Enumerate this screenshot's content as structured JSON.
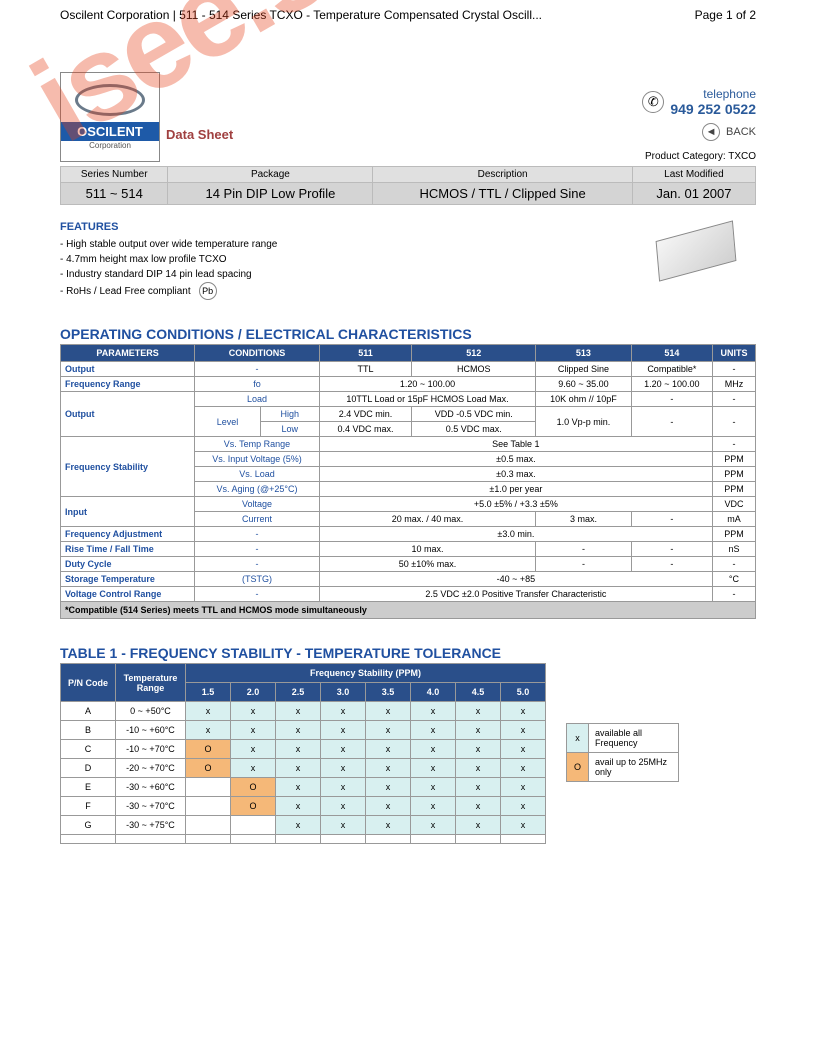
{
  "header": {
    "left": "Oscilent Corporation | 511 - 514 Series TCXO - Temperature Compensated Crystal Oscill...",
    "right": "Page 1 of 2"
  },
  "logo": {
    "name": "OSCILENT",
    "sub": "Corporation"
  },
  "data_sheet": "Data Sheet",
  "phone": {
    "label": "telephone",
    "number": "949 252 0522"
  },
  "back": "BACK",
  "product_category": {
    "lbl": "Product Category:",
    "val": "TXCO"
  },
  "hdr": {
    "cols": [
      "Series Number",
      "Package",
      "Description",
      "Last Modified"
    ],
    "vals": [
      "511 ~ 514",
      "14 Pin DIP Low Profile",
      "HCMOS / TTL / Clipped Sine",
      "Jan. 01 2007"
    ]
  },
  "features": {
    "title": "FEATURES",
    "items": [
      "- High stable output over wide temperature range",
      "- 4.7mm height max low profile TCXO",
      "- Industry standard DIP 14 pin lead spacing",
      "- RoHs / Lead Free compliant"
    ]
  },
  "pb": "Pb",
  "sect1": "OPERATING CONDITIONS / ELECTRICAL CHARACTERISTICS",
  "specs": {
    "head": [
      "PARAMETERS",
      "CONDITIONS",
      "511",
      "512",
      "513",
      "514",
      "UNITS"
    ],
    "rows": [
      {
        "p": "Output",
        "c": "-",
        "v": [
          "TTL",
          "HCMOS",
          "Clipped Sine",
          "Compatible*",
          "-"
        ]
      },
      {
        "p": "Frequency Range",
        "c": "fo",
        "v": [
          {
            "span": 2,
            "t": "1.20 ~ 100.00"
          },
          "9.60 ~ 35.00",
          "1.20 ~ 100.00",
          "MHz"
        ]
      },
      {
        "p": "Output",
        "rows": [
          {
            "c": "Load",
            "v": [
              {
                "span": 2,
                "t": "10TTL Load or 15pF HCMOS Load Max."
              },
              "10K ohm // 10pF",
              "-",
              "-"
            ]
          },
          {
            "c": "Level",
            "sub": [
              {
                "s": "High",
                "v": [
                  "2.4 VDC min.",
                  "VDD -0.5 VDC min.",
                  {
                    "rs": 2,
                    "t": "1.0 Vp-p min."
                  },
                  {
                    "rs": 2,
                    "t": "-"
                  },
                  {
                    "rs": 2,
                    "t": "-"
                  }
                ]
              },
              {
                "s": "Low",
                "v": [
                  "0.4 VDC max.",
                  "0.5 VDC max."
                ]
              }
            ]
          }
        ]
      },
      {
        "p": "Frequency Stability",
        "rows": [
          {
            "c": "Vs. Temp Range",
            "v": [
              {
                "span": 4,
                "t": "See Table 1"
              },
              "-"
            ]
          },
          {
            "c": "Vs. Input Voltage (5%)",
            "v": [
              {
                "span": 4,
                "t": "±0.5 max."
              },
              "PPM"
            ]
          },
          {
            "c": "Vs. Load",
            "v": [
              {
                "span": 4,
                "t": "±0.3 max."
              },
              "PPM"
            ]
          },
          {
            "c": "Vs. Aging (@+25°C)",
            "v": [
              {
                "span": 4,
                "t": "±1.0 per year"
              },
              "PPM"
            ]
          }
        ]
      },
      {
        "p": "Input",
        "rows": [
          {
            "c": "Voltage",
            "v": [
              {
                "span": 4,
                "t": "+5.0 ±5% / +3.3 ±5%"
              },
              "VDC"
            ]
          },
          {
            "c": "Current",
            "v": [
              {
                "span": 2,
                "t": "20 max. / 40 max."
              },
              "3 max.",
              "-",
              "mA"
            ]
          }
        ]
      },
      {
        "p": "Frequency Adjustment",
        "c": "-",
        "v": [
          {
            "span": 4,
            "t": "±3.0 min."
          },
          "PPM"
        ]
      },
      {
        "p": "Rise Time / Fall Time",
        "c": "-",
        "v": [
          {
            "span": 2,
            "t": "10 max."
          },
          "-",
          "-",
          "nS"
        ]
      },
      {
        "p": "Duty Cycle",
        "c": "-",
        "v": [
          {
            "span": 2,
            "t": "50 ±10% max."
          },
          "-",
          "-",
          "-"
        ]
      },
      {
        "p": "Storage Temperature",
        "c": "(TSTG)",
        "v": [
          {
            "span": 4,
            "t": "-40 ~ +85"
          },
          "°C"
        ]
      },
      {
        "p": "Voltage Control Range",
        "c": "-",
        "v": [
          {
            "span": 4,
            "t": "2.5 VDC ±2.0 Positive Transfer Characteristic"
          },
          "-"
        ]
      }
    ],
    "note": "*Compatible (514 Series) meets TTL and HCMOS mode simultaneously"
  },
  "sect2": "TABLE 1 -  FREQUENCY STABILITY - TEMPERATURE TOLERANCE",
  "t1": {
    "h1": "P/N Code",
    "h2": "Temperature Range",
    "h3": "Frequency Stability (PPM)",
    "cols": [
      "1.5",
      "2.0",
      "2.5",
      "3.0",
      "3.5",
      "4.0",
      "4.5",
      "5.0"
    ],
    "rows": [
      {
        "c": "A",
        "r": "0 ~ +50°C",
        "m": [
          "x",
          "x",
          "x",
          "x",
          "x",
          "x",
          "x",
          "x"
        ]
      },
      {
        "c": "B",
        "r": "-10 ~ +60°C",
        "m": [
          "x",
          "x",
          "x",
          "x",
          "x",
          "x",
          "x",
          "x"
        ]
      },
      {
        "c": "C",
        "r": "-10 ~ +70°C",
        "m": [
          "O",
          "x",
          "x",
          "x",
          "x",
          "x",
          "x",
          "x"
        ]
      },
      {
        "c": "D",
        "r": "-20 ~ +70°C",
        "m": [
          "O",
          "x",
          "x",
          "x",
          "x",
          "x",
          "x",
          "x"
        ]
      },
      {
        "c": "E",
        "r": "-30 ~ +60°C",
        "m": [
          "",
          "O",
          "x",
          "x",
          "x",
          "x",
          "x",
          "x"
        ]
      },
      {
        "c": "F",
        "r": "-30 ~ +70°C",
        "m": [
          "",
          "O",
          "x",
          "x",
          "x",
          "x",
          "x",
          "x"
        ]
      },
      {
        "c": "G",
        "r": "-30 ~ +75°C",
        "m": [
          "",
          "",
          "x",
          "x",
          "x",
          "x",
          "x",
          "x"
        ]
      },
      {
        "c": "",
        "r": "",
        "m": [
          "",
          "",
          "",
          "",
          "",
          "",
          "",
          ""
        ]
      }
    ]
  },
  "legend": [
    {
      "k": "x",
      "t": "available all Frequency"
    },
    {
      "k": "O",
      "t": "avail up to 25MHz only"
    }
  ],
  "watermark": "isee.sisoog.com"
}
